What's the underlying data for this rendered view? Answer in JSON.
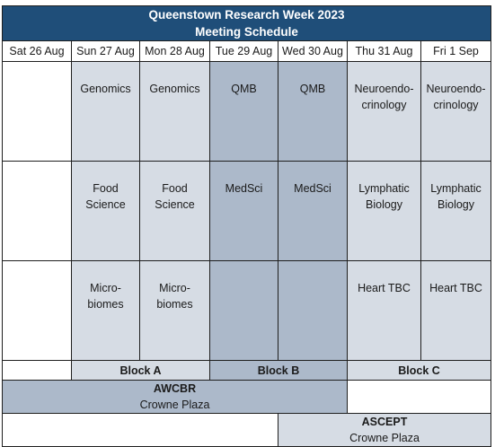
{
  "title": {
    "line1": "Queenstown Research Week 2023",
    "line2": "Meeting Schedule"
  },
  "days": [
    "Sat 26 Aug",
    "Sun 27 Aug",
    "Mon 28 Aug",
    "Tue 29 Aug",
    "Wed 30 Aug",
    "Thu 31 Aug",
    "Fri 1 Sep"
  ],
  "rows": [
    {
      "sun": [
        "Genomics"
      ],
      "mon": [
        "Genomics"
      ],
      "tue": [
        "QMB"
      ],
      "wed": [
        "QMB"
      ],
      "thu": [
        "Neuroendo-",
        "crinology"
      ],
      "fri": [
        "Neuroendo-",
        "crinology"
      ]
    },
    {
      "sun": [
        "Food",
        "Science"
      ],
      "mon": [
        "Food",
        "Science"
      ],
      "tue": [
        "MedSci"
      ],
      "wed": [
        "MedSci"
      ],
      "thu": [
        "Lymphatic",
        "Biology"
      ],
      "fri": [
        "Lymphatic",
        "Biology"
      ]
    },
    {
      "sun": [
        "Micro-",
        "biomes"
      ],
      "mon": [
        "Micro-",
        "biomes"
      ],
      "tue": [
        ""
      ],
      "wed": [
        ""
      ],
      "thu": [
        "Heart TBC"
      ],
      "fri": [
        "Heart TBC"
      ]
    }
  ],
  "blocks": {
    "a": "Block A",
    "b": "Block B",
    "c": "Block C"
  },
  "venues": {
    "awcbr": {
      "name": "AWCBR",
      "place": "Crowne Plaza"
    },
    "ascept": {
      "name": "ASCEPT",
      "place": "Crowne Plaza"
    }
  },
  "colors": {
    "header": "#1f4e79",
    "light": "#d6dce4",
    "medium": "#acb9ca"
  }
}
